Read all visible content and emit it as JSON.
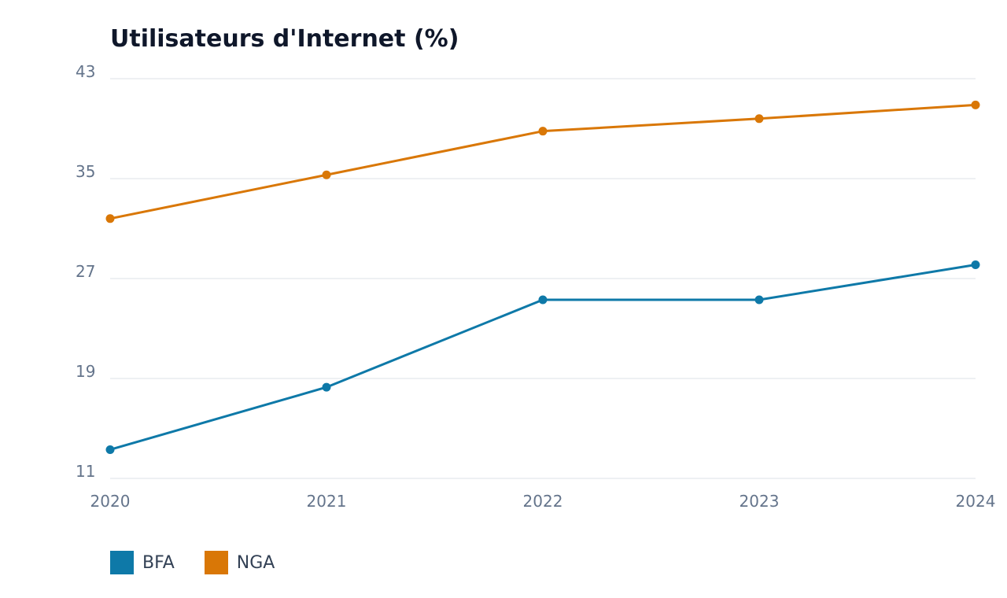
{
  "chart_data": {
    "type": "line",
    "title": "Utilisateurs d'Internet (%)",
    "x": [
      "2020",
      "2021",
      "2022",
      "2023",
      "2024"
    ],
    "ylim": [
      11,
      43
    ],
    "yticks": [
      "11",
      "19",
      "27",
      "35",
      "43"
    ],
    "grid": true,
    "legend_position": "bottom-left",
    "series": [
      {
        "name": "BFA",
        "color": "#0e79a8",
        "values": [
          13.3,
          18.3,
          25.3,
          25.3,
          28.1
        ]
      },
      {
        "name": "NGA",
        "color": "#d97706",
        "values": [
          31.8,
          35.3,
          38.8,
          39.8,
          40.9
        ]
      }
    ]
  }
}
